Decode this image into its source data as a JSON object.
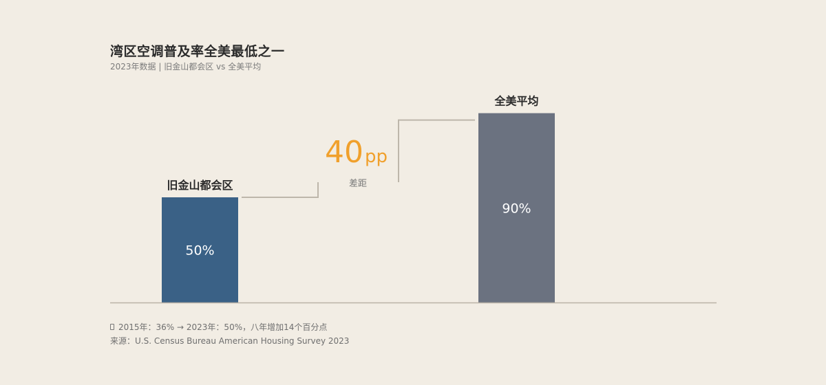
{
  "title": "湾区空调普及率全美最低之一",
  "subtitle": "2023年数据 | 旧金山都会区 vs 全美平均",
  "note": "2015年：36% → 2023年：50%，八年增加14个百分点",
  "note_icon": "phone-icon",
  "source": "来源：U.S. Census Bureau American Housing Survey 2023",
  "colors": {
    "sf": "#3a6186",
    "us": "#6b7280",
    "accent": "#f0a02c",
    "connector": "#bdb6aa",
    "baseline": "#b9b2a6"
  },
  "chart_data": {
    "type": "bar",
    "categories": [
      "旧金山都会区",
      "全美平均"
    ],
    "values": [
      50,
      90
    ],
    "value_labels": [
      "50%",
      "90%"
    ],
    "ylim": [
      0,
      100
    ],
    "annotation": {
      "value": "40",
      "unit": "pp",
      "label": "差距"
    }
  }
}
